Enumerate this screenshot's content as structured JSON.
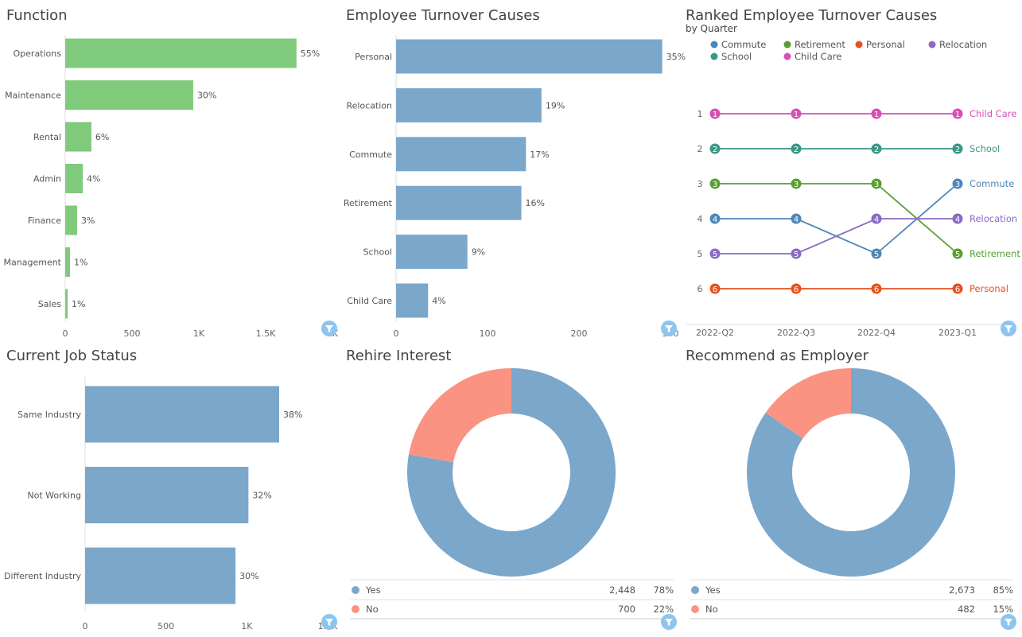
{
  "chart_data": [
    {
      "id": "function",
      "type": "bar",
      "orientation": "horizontal",
      "title": "Function",
      "categories": [
        "Operations",
        "Maintenance",
        "Rental",
        "Admin",
        "Finance",
        "Management",
        "Sales"
      ],
      "values": [
        1731,
        958,
        196,
        131,
        89,
        36,
        18
      ],
      "data_labels": [
        "55%",
        "30%",
        "6%",
        "4%",
        "3%",
        "1%",
        "1%"
      ],
      "xticks": [
        "0",
        "500",
        "1K",
        "1.5K",
        "2K"
      ],
      "xlim": [
        0,
        2000
      ],
      "color": "#7fca7b"
    },
    {
      "id": "turnover",
      "type": "bar",
      "orientation": "horizontal",
      "title": "Employee Turnover Causes",
      "categories": [
        "Personal",
        "Relocation",
        "Commute",
        "Retirement",
        "School",
        "Child Care"
      ],
      "values": [
        291,
        159,
        142,
        137,
        78,
        35
      ],
      "data_labels": [
        "35%",
        "19%",
        "17%",
        "16%",
        "9%",
        "4%"
      ],
      "xticks": [
        "0",
        "100",
        "200",
        "300"
      ],
      "xlim": [
        0,
        300
      ],
      "color": "#7ba7cb"
    },
    {
      "id": "ranked",
      "type": "line",
      "title": "Ranked Employee Turnover Causes",
      "subtitle": "by Quarter",
      "x": [
        "2022-Q2",
        "2022-Q3",
        "2022-Q4",
        "2023-Q1"
      ],
      "yticks": [
        "1",
        "2",
        "3",
        "4",
        "5",
        "6"
      ],
      "legend_position": "top",
      "series": [
        {
          "name": "Commute",
          "values": [
            4,
            4,
            5,
            3
          ],
          "color": "#4e86b8"
        },
        {
          "name": "Retirement",
          "values": [
            3,
            3,
            3,
            5
          ],
          "color": "#5a9e32"
        },
        {
          "name": "Personal",
          "values": [
            6,
            6,
            6,
            6
          ],
          "color": "#e8501e"
        },
        {
          "name": "Relocation",
          "values": [
            5,
            5,
            4,
            4
          ],
          "color": "#8b6ac4"
        },
        {
          "name": "School",
          "values": [
            2,
            2,
            2,
            2
          ],
          "color": "#3a9788"
        },
        {
          "name": "Child Care",
          "values": [
            1,
            1,
            1,
            1
          ],
          "color": "#d94fb5"
        }
      ]
    },
    {
      "id": "jobstatus",
      "type": "bar",
      "orientation": "horizontal",
      "title": "Current Job Status",
      "categories": [
        "Same Industry",
        "Not Working",
        "Different Industry"
      ],
      "values": [
        1200,
        1010,
        930
      ],
      "data_labels": [
        "38%",
        "32%",
        "30%"
      ],
      "xticks": [
        "0",
        "500",
        "1K",
        "1.5K"
      ],
      "xlim": [
        0,
        1500
      ],
      "color": "#7ba7cb"
    },
    {
      "id": "rehire",
      "type": "pie",
      "donut": true,
      "title": "Rehire Interest",
      "slices": [
        {
          "label": "Yes",
          "value": 2448,
          "value_text": "2,448",
          "pct": "78%",
          "color": "#7ba7cb"
        },
        {
          "label": "No",
          "value": 700,
          "value_text": "700",
          "pct": "22%",
          "color": "#fa9382"
        }
      ]
    },
    {
      "id": "recommend",
      "type": "pie",
      "donut": true,
      "title": "Recommend as Employer",
      "slices": [
        {
          "label": "Yes",
          "value": 2673,
          "value_text": "2,673",
          "pct": "85%",
          "color": "#7ba7cb"
        },
        {
          "label": "No",
          "value": 482,
          "value_text": "482",
          "pct": "15%",
          "color": "#fa9382"
        }
      ]
    }
  ],
  "filter_icon": "funnel-icon",
  "filter_color": "#8ec5ee"
}
